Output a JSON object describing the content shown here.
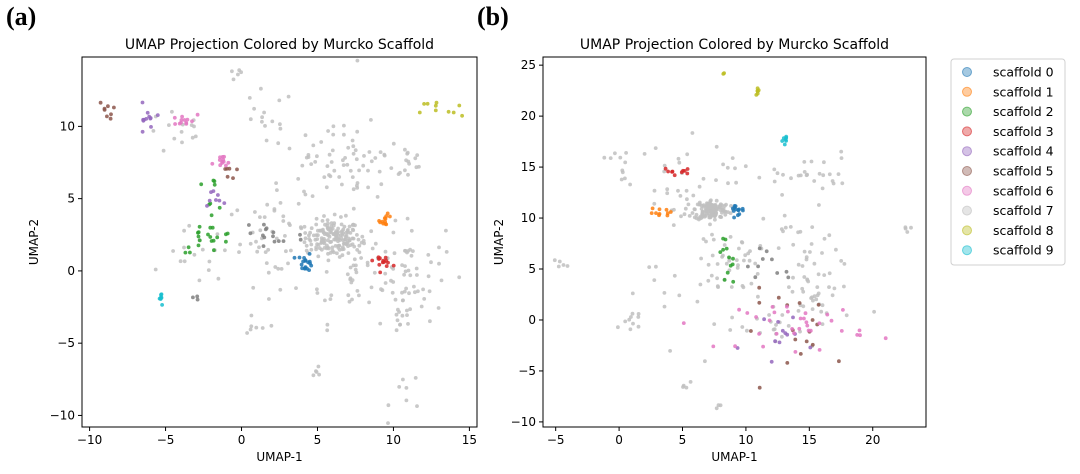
{
  "panel_labels": [
    "(a)",
    "(b)"
  ],
  "colors": {
    "scaffold 0": "#1f77b4",
    "scaffold 1": "#ff7f0e",
    "scaffold 2": "#2ca02c",
    "scaffold 3": "#d62728",
    "scaffold 4": "#9467bd",
    "scaffold 5": "#8c564b",
    "scaffold 6": "#e377c2",
    "scaffold 7": "#bfbfbf",
    "scaffold 8": "#bcbd22",
    "scaffold 9": "#17becf",
    "other": "#7f7f7f"
  },
  "legend": [
    "scaffold 0",
    "scaffold 1",
    "scaffold 2",
    "scaffold 3",
    "scaffold 4",
    "scaffold 5",
    "scaffold 6",
    "scaffold 7",
    "scaffold 8",
    "scaffold 9"
  ],
  "chart_data": [
    {
      "type": "scatter",
      "title": "UMAP Projection Colored by Murcko Scaffold",
      "xlabel": "UMAP-1",
      "ylabel": "UMAP-2",
      "xlim": [
        -10.5,
        15.5
      ],
      "ylim": [
        -10.8,
        14.8
      ],
      "xticks": [
        -10,
        -5,
        0,
        5,
        10,
        15
      ],
      "yticks": [
        -10,
        -5,
        0,
        5,
        10
      ],
      "clusters": [
        {
          "name": "scaffold 7",
          "cx": 6.0,
          "cy": 2.3,
          "sx": 0.9,
          "sy": 0.6,
          "n": 140
        },
        {
          "name": "scaffold 7",
          "cx": 7.5,
          "cy": 0.5,
          "sx": 1.8,
          "sy": 2.0,
          "n": 60
        },
        {
          "name": "scaffold 7",
          "cx": 11.0,
          "cy": 0.0,
          "sx": 1.2,
          "sy": 1.6,
          "n": 50
        },
        {
          "name": "scaffold 7",
          "cx": 2.5,
          "cy": 2.0,
          "sx": 1.8,
          "sy": 1.5,
          "n": 45
        },
        {
          "name": "scaffold 7",
          "cx": 5.5,
          "cy": 6.5,
          "sx": 2.0,
          "sy": 1.5,
          "n": 45
        },
        {
          "name": "scaffold 7",
          "cx": 8.5,
          "cy": 8.0,
          "sx": 2.0,
          "sy": 2.0,
          "n": 35
        },
        {
          "name": "scaffold 7",
          "cx": 1.5,
          "cy": 10.5,
          "sx": 1.0,
          "sy": 1.0,
          "n": 15
        },
        {
          "name": "scaffold 7",
          "cx": -0.5,
          "cy": 13.5,
          "sx": 0.3,
          "sy": 0.3,
          "n": 5
        },
        {
          "name": "scaffold 7",
          "cx": -4.0,
          "cy": 9.5,
          "sx": 1.2,
          "sy": 0.8,
          "n": 14
        },
        {
          "name": "scaffold 7",
          "cx": -3.0,
          "cy": 1.0,
          "sx": 1.0,
          "sy": 1.0,
          "n": 16
        },
        {
          "name": "scaffold 7",
          "cx": 10.5,
          "cy": -3.5,
          "sx": 0.4,
          "sy": 0.6,
          "n": 12
        },
        {
          "name": "scaffold 7",
          "cx": 11.0,
          "cy": -8.5,
          "sx": 0.6,
          "sy": 0.8,
          "n": 8
        },
        {
          "name": "scaffold 7",
          "cx": 5.0,
          "cy": -7.0,
          "sx": 0.3,
          "sy": 0.3,
          "n": 5
        },
        {
          "name": "scaffold 7",
          "cx": 1.0,
          "cy": -4.0,
          "sx": 0.4,
          "sy": 0.3,
          "n": 6
        },
        {
          "name": "scaffold 7",
          "cx": 11.5,
          "cy": 7.5,
          "sx": 0.5,
          "sy": 0.5,
          "n": 8
        },
        {
          "name": "scaffold 0",
          "cx": 4.2,
          "cy": 0.6,
          "sx": 0.25,
          "sy": 0.3,
          "n": 18
        },
        {
          "name": "scaffold 1",
          "cx": 9.5,
          "cy": 3.5,
          "sx": 0.2,
          "sy": 0.2,
          "n": 12
        },
        {
          "name": "scaffold 2",
          "cx": -2.2,
          "cy": 2.3,
          "sx": 0.9,
          "sy": 0.5,
          "n": 20
        },
        {
          "name": "scaffold 2",
          "cx": -2.0,
          "cy": 5.3,
          "sx": 0.5,
          "sy": 0.6,
          "n": 8
        },
        {
          "name": "scaffold 3",
          "cx": 9.3,
          "cy": 0.7,
          "sx": 0.3,
          "sy": 0.2,
          "n": 14
        },
        {
          "name": "scaffold 4",
          "cx": -6.3,
          "cy": 10.3,
          "sx": 0.25,
          "sy": 0.6,
          "n": 12
        },
        {
          "name": "scaffold 4",
          "cx": -1.8,
          "cy": 5.0,
          "sx": 0.4,
          "sy": 0.3,
          "n": 8
        },
        {
          "name": "scaffold 5",
          "cx": -8.8,
          "cy": 11.2,
          "sx": 0.3,
          "sy": 0.3,
          "n": 8
        },
        {
          "name": "scaffold 5",
          "cx": -1.0,
          "cy": 6.8,
          "sx": 0.3,
          "sy": 0.5,
          "n": 6
        },
        {
          "name": "scaffold 6",
          "cx": -3.9,
          "cy": 10.4,
          "sx": 0.5,
          "sy": 0.2,
          "n": 12
        },
        {
          "name": "scaffold 6",
          "cx": -1.3,
          "cy": 7.4,
          "sx": 0.3,
          "sy": 0.3,
          "n": 12
        },
        {
          "name": "scaffold 8",
          "cx": 13.2,
          "cy": 11.1,
          "sx": 0.7,
          "sy": 0.4,
          "n": 10
        },
        {
          "name": "scaffold 9",
          "cx": -5.3,
          "cy": -1.9,
          "sx": 0.1,
          "sy": 0.25,
          "n": 8
        },
        {
          "name": "other",
          "cx": 1.8,
          "cy": 2.5,
          "sx": 1.2,
          "sy": 0.8,
          "n": 15
        },
        {
          "name": "other",
          "cx": -3.0,
          "cy": -1.9,
          "sx": 0.2,
          "sy": 0.1,
          "n": 3
        }
      ]
    },
    {
      "type": "scatter",
      "title": "UMAP Projection Colored by Murcko Scaffold",
      "xlabel": "UMAP-1",
      "ylabel": "UMAP-2",
      "xlim": [
        -6.0,
        24.2
      ],
      "ylim": [
        -10.5,
        25.8
      ],
      "xticks": [
        -5,
        0,
        5,
        10,
        15,
        20
      ],
      "yticks": [
        -10,
        -5,
        0,
        5,
        10,
        15,
        20,
        25
      ],
      "clusters": [
        {
          "name": "scaffold 7",
          "cx": 7.3,
          "cy": 10.8,
          "sx": 0.7,
          "sy": 0.5,
          "n": 120
        },
        {
          "name": "scaffold 7",
          "cx": 4.5,
          "cy": 12.5,
          "sx": 2.0,
          "sy": 2.5,
          "n": 40
        },
        {
          "name": "scaffold 7",
          "cx": 9.0,
          "cy": 5.5,
          "sx": 1.0,
          "sy": 1.5,
          "n": 30
        },
        {
          "name": "scaffold 7",
          "cx": 14.0,
          "cy": 14.5,
          "sx": 2.5,
          "sy": 1.0,
          "n": 30
        },
        {
          "name": "scaffold 7",
          "cx": 14.5,
          "cy": 7.0,
          "sx": 1.5,
          "sy": 2.0,
          "n": 25
        },
        {
          "name": "scaffold 7",
          "cx": 16.0,
          "cy": 2.5,
          "sx": 1.8,
          "sy": 1.8,
          "n": 35
        },
        {
          "name": "scaffold 7",
          "cx": 5.5,
          "cy": 2.5,
          "sx": 2.5,
          "sy": 2.5,
          "n": 25
        },
        {
          "name": "scaffold 7",
          "cx": 1.0,
          "cy": 0.0,
          "sx": 0.5,
          "sy": 0.6,
          "n": 8
        },
        {
          "name": "scaffold 7",
          "cx": -4.5,
          "cy": 5.5,
          "sx": 0.3,
          "sy": 0.3,
          "n": 5
        },
        {
          "name": "scaffold 7",
          "cx": 5.5,
          "cy": -6.0,
          "sx": 0.3,
          "sy": 0.3,
          "n": 4
        },
        {
          "name": "scaffold 7",
          "cx": 7.8,
          "cy": -8.7,
          "sx": 0.2,
          "sy": 0.2,
          "n": 3
        },
        {
          "name": "scaffold 7",
          "cx": 0.0,
          "cy": 15.5,
          "sx": 0.6,
          "sy": 1.0,
          "n": 10
        },
        {
          "name": "scaffold 7",
          "cx": 22.7,
          "cy": 9.0,
          "sx": 0.2,
          "sy": 0.2,
          "n": 4
        },
        {
          "name": "scaffold 7",
          "cx": 12.0,
          "cy": -1.0,
          "sx": 1.5,
          "sy": 1.5,
          "n": 20
        },
        {
          "name": "scaffold 0",
          "cx": 9.3,
          "cy": 11.0,
          "sx": 0.5,
          "sy": 0.3,
          "n": 14
        },
        {
          "name": "scaffold 1",
          "cx": 3.6,
          "cy": 10.5,
          "sx": 0.6,
          "sy": 0.2,
          "n": 10
        },
        {
          "name": "scaffold 2",
          "cx": 8.3,
          "cy": 5.5,
          "sx": 0.4,
          "sy": 1.5,
          "n": 12
        },
        {
          "name": "scaffold 3",
          "cx": 4.7,
          "cy": 14.6,
          "sx": 0.6,
          "sy": 0.15,
          "n": 10
        },
        {
          "name": "scaffold 4",
          "cx": 13.8,
          "cy": -2.0,
          "sx": 2.0,
          "sy": 1.5,
          "n": 12
        },
        {
          "name": "scaffold 5",
          "cx": 14.5,
          "cy": -1.0,
          "sx": 2.5,
          "sy": 2.0,
          "n": 18
        },
        {
          "name": "scaffold 6",
          "cx": 14.5,
          "cy": -0.5,
          "sx": 2.5,
          "sy": 1.2,
          "n": 35
        },
        {
          "name": "scaffold 8",
          "cx": 11.0,
          "cy": 22.4,
          "sx": 0.2,
          "sy": 0.15,
          "n": 6
        },
        {
          "name": "scaffold 8",
          "cx": 8.2,
          "cy": 24.2,
          "sx": 0.05,
          "sy": 0.05,
          "n": 2
        },
        {
          "name": "scaffold 9",
          "cx": 13.0,
          "cy": 17.6,
          "sx": 0.15,
          "sy": 0.25,
          "n": 7
        },
        {
          "name": "other",
          "cx": 12.0,
          "cy": 5.5,
          "sx": 1.5,
          "sy": 0.8,
          "n": 10
        }
      ]
    }
  ]
}
